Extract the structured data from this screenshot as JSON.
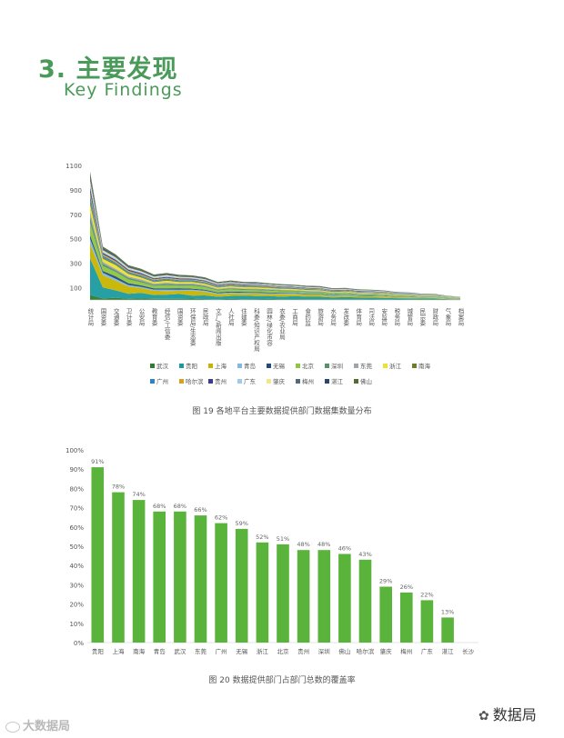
{
  "header": {
    "title": "3. 主要发现",
    "subtitle": "Key Findings"
  },
  "chart_data": [
    {
      "type": "area",
      "stacked": true,
      "caption": "图 19  各地平台主要数据提供部门数据集数量分布",
      "yticks": [
        100,
        300,
        500,
        700,
        900,
        1100
      ],
      "ylim": [
        0,
        1100
      ],
      "categories": [
        "统计局",
        "国资委",
        "交通委",
        "卫计委",
        "公安局",
        "教育委",
        "经信/工信委",
        "国资委",
        "环保局/生态委",
        "民政局",
        "文广/新闻出版",
        "人社局",
        "住建委",
        "科委/知识产权局",
        "园林/绿化市容",
        "农委/农业局",
        "工商局",
        "食药监",
        "旅游局",
        "水务局",
        "发改委",
        "体育局",
        "司法局",
        "安监局",
        "税务局",
        "城管局",
        "民宗委",
        "财政局",
        "气象局",
        "档案局"
      ],
      "series": [
        {
          "name": "武汉",
          "color": "#2e7d32",
          "values": [
            40,
            12,
            18,
            10,
            12,
            10,
            8,
            9,
            11,
            7,
            6,
            8,
            6,
            7,
            8,
            6,
            7,
            6,
            6,
            5,
            5,
            5,
            4,
            5,
            4,
            3,
            3,
            3,
            2,
            2
          ]
        },
        {
          "name": "贵阳",
          "color": "#1a9aa0",
          "values": [
            300,
            90,
            60,
            40,
            45,
            30,
            35,
            40,
            25,
            30,
            20,
            25,
            30,
            25,
            25,
            20,
            25,
            20,
            20,
            15,
            18,
            15,
            15,
            12,
            10,
            10,
            8,
            8,
            5,
            3
          ]
        },
        {
          "name": "上海",
          "color": "#c8b400",
          "values": [
            120,
            100,
            80,
            60,
            40,
            35,
            30,
            25,
            40,
            30,
            20,
            20,
            15,
            20,
            15,
            20,
            15,
            15,
            15,
            10,
            12,
            10,
            10,
            10,
            8,
            8,
            6,
            6,
            4,
            3
          ]
        },
        {
          "name": "青岛",
          "color": "#7fb8e0",
          "values": [
            40,
            20,
            15,
            12,
            10,
            10,
            12,
            10,
            8,
            9,
            8,
            7,
            8,
            6,
            7,
            6,
            6,
            5,
            5,
            5,
            5,
            4,
            4,
            4,
            3,
            3,
            3,
            2,
            2,
            2
          ]
        },
        {
          "name": "无锡",
          "color": "#234a78",
          "values": [
            30,
            15,
            20,
            15,
            12,
            10,
            10,
            12,
            8,
            8,
            8,
            9,
            7,
            6,
            6,
            6,
            5,
            5,
            5,
            5,
            4,
            4,
            4,
            3,
            3,
            3,
            2,
            2,
            2,
            1
          ]
        },
        {
          "name": "北京",
          "color": "#8dc63f",
          "values": [
            100,
            40,
            35,
            30,
            25,
            20,
            25,
            20,
            25,
            20,
            15,
            18,
            15,
            15,
            15,
            12,
            12,
            12,
            10,
            10,
            10,
            8,
            8,
            8,
            6,
            6,
            5,
            5,
            3,
            2
          ]
        },
        {
          "name": "深圳",
          "color": "#5a8f69",
          "values": [
            50,
            20,
            15,
            15,
            12,
            10,
            12,
            10,
            10,
            10,
            8,
            8,
            8,
            8,
            7,
            7,
            6,
            6,
            6,
            5,
            5,
            5,
            4,
            4,
            4,
            3,
            3,
            3,
            2,
            1
          ]
        },
        {
          "name": "东莞",
          "color": "#9fa5a9",
          "values": [
            40,
            15,
            12,
            10,
            12,
            9,
            10,
            8,
            8,
            8,
            6,
            7,
            6,
            6,
            6,
            6,
            5,
            5,
            5,
            4,
            4,
            4,
            4,
            3,
            3,
            3,
            2,
            2,
            2,
            1
          ]
        },
        {
          "name": "浙江",
          "color": "#ece330",
          "values": [
            60,
            25,
            30,
            20,
            15,
            12,
            15,
            12,
            12,
            10,
            10,
            10,
            9,
            10,
            8,
            8,
            8,
            7,
            7,
            6,
            6,
            5,
            5,
            5,
            4,
            4,
            3,
            3,
            2,
            1
          ]
        },
        {
          "name": "南海",
          "color": "#6f7d2a",
          "values": [
            30,
            10,
            10,
            8,
            8,
            7,
            8,
            7,
            6,
            6,
            5,
            6,
            5,
            5,
            5,
            5,
            4,
            4,
            4,
            4,
            3,
            3,
            3,
            3,
            2,
            2,
            2,
            2,
            1,
            1
          ]
        },
        {
          "name": "广州",
          "color": "#2b84c7",
          "values": [
            40,
            15,
            12,
            10,
            10,
            9,
            9,
            9,
            8,
            8,
            7,
            7,
            6,
            6,
            6,
            6,
            5,
            5,
            5,
            5,
            4,
            4,
            4,
            3,
            3,
            3,
            2,
            2,
            2,
            1
          ]
        },
        {
          "name": "哈尔滨",
          "color": "#d6a21e",
          "values": [
            30,
            12,
            10,
            8,
            8,
            7,
            7,
            6,
            6,
            6,
            5,
            5,
            5,
            5,
            5,
            4,
            4,
            4,
            4,
            3,
            3,
            3,
            3,
            3,
            2,
            2,
            2,
            2,
            1,
            1
          ]
        },
        {
          "name": "贵州",
          "color": "#3d3b8e",
          "values": [
            40,
            12,
            12,
            10,
            10,
            8,
            8,
            8,
            7,
            7,
            6,
            6,
            6,
            5,
            5,
            5,
            5,
            5,
            4,
            4,
            4,
            4,
            3,
            3,
            3,
            2,
            2,
            2,
            1,
            1
          ]
        },
        {
          "name": "广东",
          "color": "#9ec9e9",
          "values": [
            30,
            10,
            10,
            8,
            8,
            7,
            7,
            7,
            6,
            6,
            5,
            5,
            5,
            5,
            4,
            4,
            4,
            4,
            4,
            3,
            3,
            3,
            3,
            3,
            2,
            2,
            2,
            2,
            1,
            1
          ]
        },
        {
          "name": "肇庆",
          "color": "#f1e68c",
          "values": [
            25,
            10,
            8,
            7,
            7,
            6,
            6,
            6,
            5,
            5,
            5,
            5,
            4,
            4,
            4,
            4,
            4,
            3,
            3,
            3,
            3,
            3,
            3,
            2,
            2,
            2,
            2,
            1,
            1,
            1
          ]
        },
        {
          "name": "梅州",
          "color": "#546a7b",
          "values": [
            20,
            8,
            7,
            6,
            6,
            5,
            5,
            5,
            5,
            4,
            4,
            4,
            4,
            4,
            3,
            3,
            3,
            3,
            3,
            3,
            3,
            2,
            2,
            2,
            2,
            2,
            1,
            1,
            1,
            1
          ]
        },
        {
          "name": "湛江",
          "color": "#2a4570",
          "values": [
            25,
            10,
            8,
            7,
            6,
            6,
            6,
            5,
            5,
            5,
            4,
            4,
            4,
            4,
            4,
            3,
            3,
            3,
            3,
            3,
            3,
            2,
            2,
            2,
            2,
            2,
            1,
            1,
            1,
            1
          ]
        },
        {
          "name": "佛山",
          "color": "#556b2f",
          "values": [
            30,
            12,
            10,
            8,
            8,
            7,
            7,
            6,
            6,
            6,
            5,
            5,
            5,
            5,
            4,
            4,
            4,
            4,
            4,
            3,
            3,
            3,
            3,
            3,
            2,
            2,
            2,
            2,
            1,
            1
          ]
        }
      ]
    },
    {
      "type": "bar",
      "caption": "图 20  数据提供部门占部门总数的覆盖率",
      "color": "#5ab33b",
      "ylim": [
        0,
        100
      ],
      "yticks": [
        "0%",
        "10%",
        "20%",
        "30%",
        "40%",
        "50%",
        "60%",
        "70%",
        "80%",
        "90%",
        "100%"
      ],
      "categories": [
        "贵阳",
        "上海",
        "南海",
        "青岛",
        "武汉",
        "东莞",
        "广州",
        "无锡",
        "浙江",
        "北京",
        "贵州",
        "深圳",
        "佛山",
        "哈尔滨",
        "肇庆",
        "梅州",
        "广东",
        "湛江",
        "长沙"
      ],
      "values": [
        91,
        78,
        74,
        68,
        68,
        66,
        62,
        59,
        52,
        51,
        48,
        48,
        46,
        43,
        29,
        26,
        22,
        13,
        0
      ],
      "labels": [
        "91%",
        "78%",
        "74%",
        "68%",
        "68%",
        "66%",
        "62%",
        "59%",
        "52%",
        "51%",
        "48%",
        "48%",
        "46%",
        "43%",
        "29%",
        "26%",
        "22%",
        "13%",
        ""
      ]
    }
  ],
  "watermark": {
    "left": "大数据局",
    "right": "数据局"
  }
}
